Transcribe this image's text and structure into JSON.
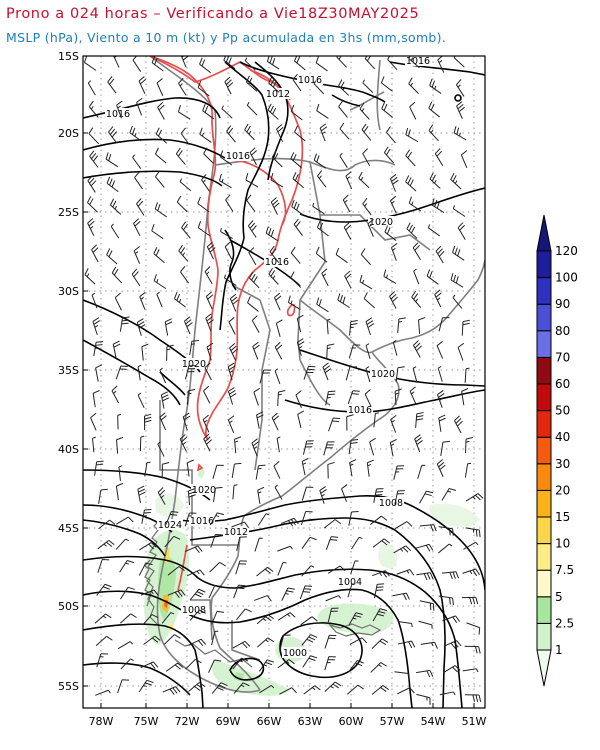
{
  "title": {
    "line1": "Prono a 024 horas – Verificando a Vie18Z30MAY2025",
    "line2": "MSLP (hPa), Viento a 10 m (kt) y Pp acumulada en 3hs (mm,somb)."
  },
  "map": {
    "lat_labels": [
      "15S",
      "20S",
      "25S",
      "30S",
      "35S",
      "40S",
      "45S",
      "50S",
      "55S"
    ],
    "lon_labels": [
      "78W",
      "75W",
      "72W",
      "69W",
      "66W",
      "63W",
      "60W",
      "57W",
      "54W",
      "51W"
    ],
    "isobar_labels": [
      {
        "text": "1016",
        "pos": "north-east"
      },
      {
        "text": "1016",
        "pos": "north"
      },
      {
        "text": "1012",
        "pos": "north-andes"
      },
      {
        "text": "1016",
        "pos": "north-west"
      },
      {
        "text": "1016",
        "pos": "bolivia"
      },
      {
        "text": "1020",
        "pos": "brazil"
      },
      {
        "text": "1016",
        "pos": "central-argentina"
      },
      {
        "text": "1020",
        "pos": "chile-coast"
      },
      {
        "text": "1020",
        "pos": "uruguay"
      },
      {
        "text": "1016",
        "pos": "buenos-aires"
      },
      {
        "text": "1020",
        "pos": "patagonia-north"
      },
      {
        "text": "1024",
        "pos": "chile-south"
      },
      {
        "text": "1016",
        "pos": "patagonia"
      },
      {
        "text": "1012",
        "pos": "patagonia-south"
      },
      {
        "text": "1008",
        "pos": "atlantic"
      },
      {
        "text": "1004",
        "pos": "atlantic-south"
      },
      {
        "text": "1008",
        "pos": "tierra"
      },
      {
        "text": "1000",
        "pos": "low-center"
      }
    ]
  },
  "colorbar": {
    "labels": [
      "1",
      "2.5",
      "5",
      "7.5",
      "10",
      "15",
      "20",
      "30",
      "40",
      "50",
      "60",
      "70",
      "80",
      "90",
      "100",
      "120"
    ],
    "colors": [
      "#f0fbef",
      "#d2f2cd",
      "#a8e59d",
      "#fdf9c8",
      "#fdec87",
      "#fcd64a",
      "#fbb11c",
      "#f98a0e",
      "#f55b0f",
      "#e3270e",
      "#c00b0d",
      "#8f0a12",
      "#6c6ee6",
      "#4a4fd6",
      "#2f30bd",
      "#1e1d9b",
      "#15157a"
    ]
  }
}
